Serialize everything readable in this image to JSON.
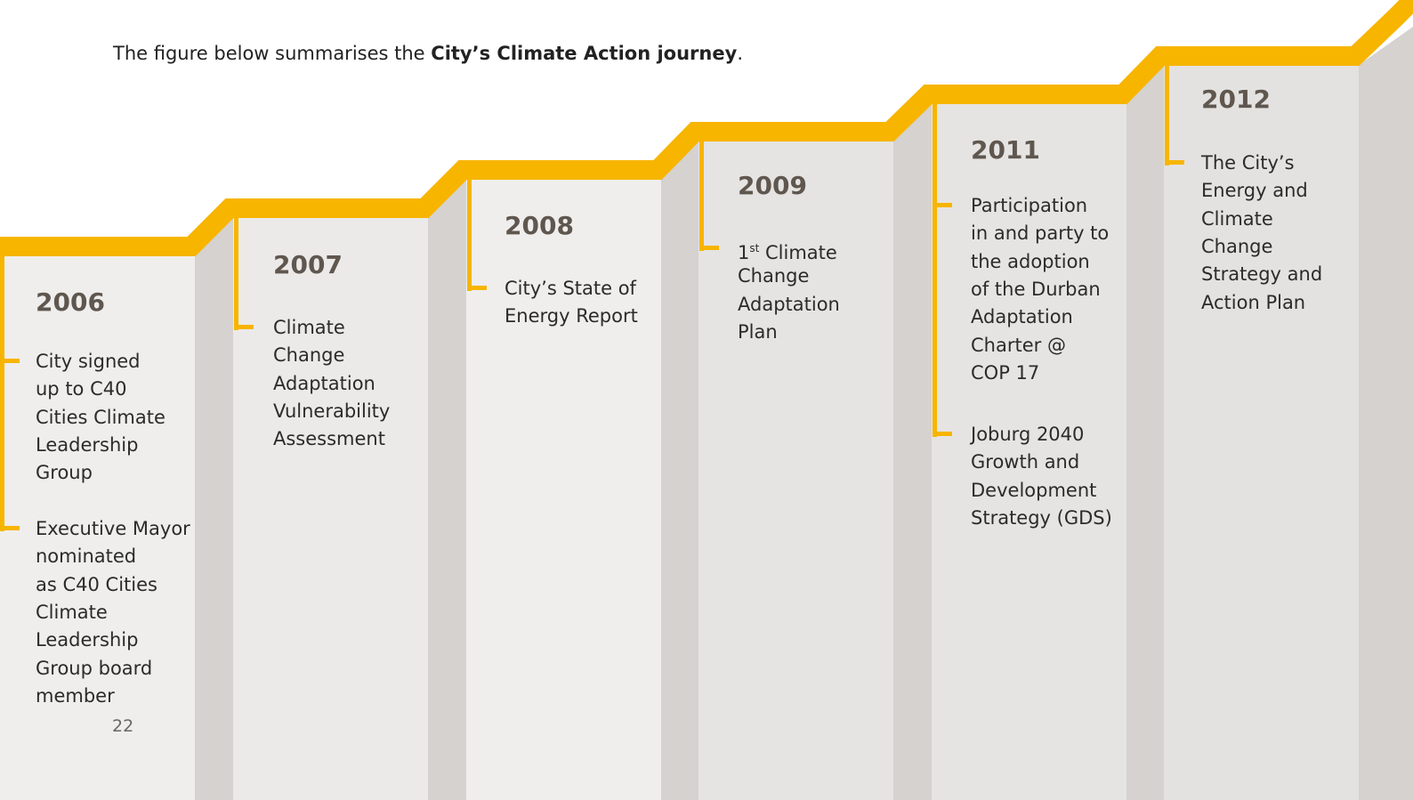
{
  "intro": {
    "prefix": "The figure below summarises the ",
    "bold": "City’s Climate Action journey",
    "suffix": "."
  },
  "steps": [
    {
      "year": "2006",
      "items": [
        {
          "lines": [
            "City signed",
            "up to C40",
            "Cities Climate",
            "Leadership",
            "Group"
          ]
        },
        {
          "lines": [
            "Executive Mayor",
            "nominated",
            "as C40 Cities",
            "Climate",
            "Leadership",
            "Group board",
            "member"
          ]
        }
      ]
    },
    {
      "year": "2007",
      "items": [
        {
          "lines": [
            "Climate",
            "Change",
            "Adaptation",
            "Vulnerability",
            "Assessment"
          ]
        }
      ]
    },
    {
      "year": "2008",
      "items": [
        {
          "lines": [
            "City’s State of",
            "Energy Report"
          ]
        }
      ]
    },
    {
      "year": "2009",
      "items": [
        {
          "lines": [
            [
              "1",
              "st",
              " Climate"
            ],
            "Change",
            "Adaptation",
            "Plan"
          ]
        }
      ]
    },
    {
      "year": "2011",
      "items": [
        {
          "lines": [
            "Participation",
            "in and party to",
            "the adoption",
            "of the Durban",
            "Adaptation",
            "Charter @",
            "COP 17"
          ]
        },
        {
          "lines": [
            "Joburg 2040",
            "Growth and",
            "Development",
            "Strategy (GDS)"
          ]
        }
      ]
    },
    {
      "year": "2012",
      "items": [
        {
          "lines": [
            "The City’s",
            "Energy and",
            "Climate",
            "Change",
            "Strategy and",
            "Action Plan"
          ]
        }
      ]
    }
  ],
  "page_number": "22"
}
